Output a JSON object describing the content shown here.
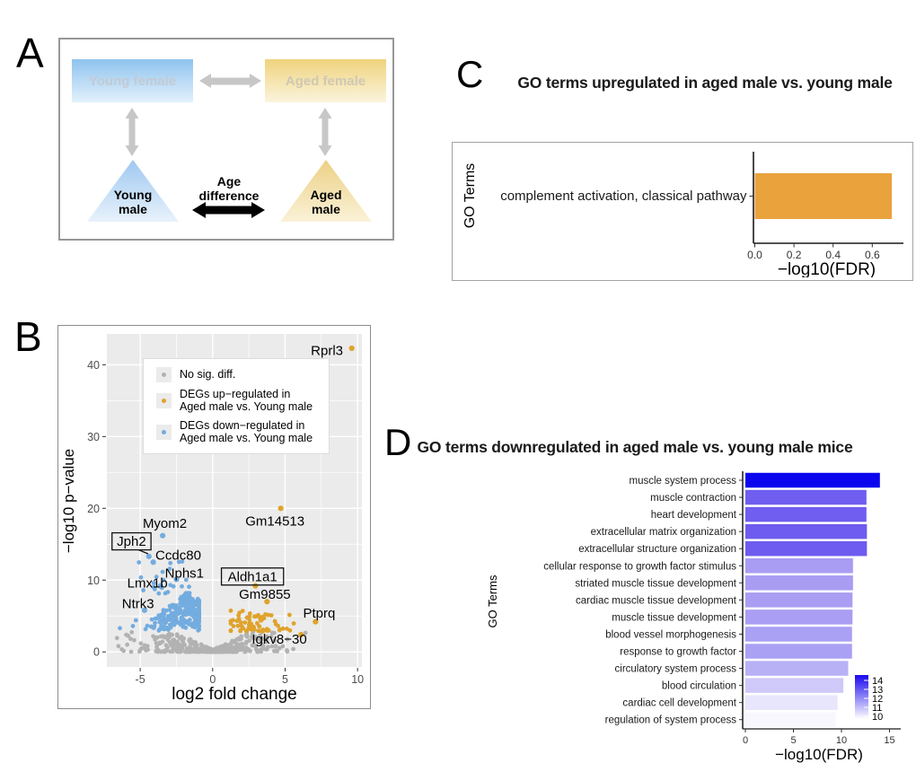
{
  "panel_a": {
    "letter": "A",
    "young_female": "Young female",
    "aged_female": "Aged female",
    "young_male": "Young male",
    "aged_male": "Aged male",
    "age_difference": "Age difference",
    "colors": {
      "blue_top": "#8FC3EE",
      "blue_bottom": "#E3F1FC",
      "yellow_top": "#EFD37E",
      "yellow_bottom": "#FBF4DC",
      "tri_blue_top": "#9FC8F0",
      "tri_blue_bottom": "#E8F2FC",
      "tri_yellow_top": "#ECD084",
      "tri_yellow_bottom": "#FAF2D8",
      "faint_text_on_blue": "#C2CAD3",
      "faint_text_on_yellow": "#CFC8B2",
      "arrow_gray": "#C7C7C7",
      "arrow_black": "#000000"
    }
  },
  "panel_b": {
    "letter": "B"
  },
  "panel_c": {
    "letter": "C",
    "title": "GO terms upregulated in aged male vs. young male"
  },
  "panel_d": {
    "letter": "D",
    "title": "GO terms downregulated in aged male vs. young male mice"
  },
  "chart_data": [
    {
      "type": "scatter",
      "name": "volcano-aged-vs-young-male",
      "xlabel": "log2 fold change",
      "ylabel": "−log10 p−value",
      "xticks": [
        -5,
        0,
        5,
        10
      ],
      "yticks": [
        0,
        10,
        20,
        30,
        40
      ],
      "xlim": [
        -7.3,
        10.3
      ],
      "ylim": [
        -2.1,
        44.3
      ],
      "panel_bg": "#EBEBEB",
      "grid_color": "#FFFFFF",
      "point_colors": {
        "up": "#DFA32C",
        "down": "#73ACDF",
        "ns": "#B2B2B2"
      },
      "legend": [
        {
          "series": "ns",
          "label": "No sig. diff."
        },
        {
          "series": "up",
          "label": "DEGs up−regulated in\n Aged male vs. Young male"
        },
        {
          "series": "down",
          "label": "DEGs down−regulated in\n Aged male vs. Young male"
        }
      ],
      "labeled_genes": [
        {
          "gene": "Rprl3",
          "x": 9.6,
          "y": 42.3,
          "series": "up",
          "label_x": 9.0,
          "label_y": 42.0,
          "anchor": "end"
        },
        {
          "gene": "Gm14513",
          "x": 4.7,
          "y": 20.0,
          "series": "up",
          "label_x": 4.3,
          "label_y": 18.2,
          "anchor": "middle"
        },
        {
          "gene": "Myom2",
          "x": -3.45,
          "y": 16.2,
          "series": "down",
          "label_x": -3.3,
          "label_y": 17.9,
          "anchor": "middle"
        },
        {
          "gene": "Jph2",
          "x": -4.4,
          "y": 13.3,
          "series": "down",
          "label_x": -5.6,
          "label_y": 15.4,
          "anchor": "middle",
          "boxed": true,
          "connector": true
        },
        {
          "gene": "Ccdc80",
          "x": -4.1,
          "y": 12.5,
          "series": "down",
          "label_x": -3.95,
          "label_y": 13.5,
          "anchor": "start"
        },
        {
          "gene": "Nphs1",
          "x": -2.5,
          "y": 10.1,
          "series": "down",
          "label_x": -1.95,
          "label_y": 11.0,
          "anchor": "middle"
        },
        {
          "gene": "Lmx1b",
          "x": -3.6,
          "y": 9.2,
          "series": "down",
          "label_x": -4.5,
          "label_y": 9.6,
          "anchor": "middle"
        },
        {
          "gene": "Ntrk3",
          "x": -4.7,
          "y": 5.8,
          "series": "down",
          "label_x": -5.15,
          "label_y": 6.7,
          "anchor": "middle"
        },
        {
          "gene": "Aldh1a1",
          "x": 2.95,
          "y": 9.2,
          "series": "up",
          "label_x": 2.75,
          "label_y": 10.5,
          "anchor": "middle",
          "boxed": true
        },
        {
          "gene": "Gm9855",
          "x": 3.75,
          "y": 7.0,
          "series": "up",
          "label_x": 3.6,
          "label_y": 8.0,
          "anchor": "middle"
        },
        {
          "gene": "Ptprq",
          "x": 7.1,
          "y": 4.2,
          "series": "up",
          "label_x": 7.35,
          "label_y": 5.4,
          "anchor": "middle"
        },
        {
          "gene": "Igkv8−30",
          "x": 6.1,
          "y": 2.4,
          "series": "up",
          "label_x": 4.6,
          "label_y": 1.8,
          "anchor": "middle"
        }
      ],
      "background_clusters": {
        "seed": 20,
        "down_wedge": {
          "count": 250,
          "x_center": -1.9,
          "x_sd": 1.15,
          "x_min": -5.35,
          "x_max": -0.95,
          "y_base": 2.95,
          "apex_x": -1.7,
          "apex_height": 5.5,
          "half_width": 3.6
        },
        "down_outliers": {
          "count": 24,
          "x_min": -5.1,
          "x_max": -1.5,
          "y_min": 8.1,
          "y_max": 12.8
        },
        "up_cluster": {
          "count": 74,
          "x_center": 2.7,
          "x_sd": 1.15,
          "x_min": 1.25,
          "x_max": 6.3,
          "y_base": 2.85,
          "y_spread": 2.9
        },
        "ns_cloud": {
          "count": 450,
          "x_sd": 2.3,
          "x_min": -6.6,
          "x_max": 6.4,
          "y_cap": 2.85,
          "y_slope": 0.95,
          "y_floor": 0.3
        }
      },
      "extra_points": [
        {
          "x": -6.4,
          "y": 3.3,
          "series": "down"
        },
        {
          "x": -5.5,
          "y": 3.6,
          "series": "down"
        },
        {
          "x": -5.3,
          "y": 4.4,
          "series": "down"
        },
        {
          "x": -5.9,
          "y": 1.0,
          "series": "ns"
        },
        {
          "x": -6.5,
          "y": 0.8,
          "series": "ns"
        },
        {
          "x": -4.9,
          "y": 0.5,
          "series": "ns"
        }
      ]
    },
    {
      "type": "bar",
      "name": "go-upregulated",
      "orientation": "horizontal",
      "title": "GO terms upregulated in aged male vs. young male",
      "categories": [
        "complement activation, classical pathway"
      ],
      "values": [
        0.7
      ],
      "bar_color": "#E9A23C",
      "xlabel": "−log10(FDR)",
      "ylabel": "GO Terms",
      "xticks": [
        0.0,
        0.2,
        0.4,
        0.6
      ],
      "xtick_labels": [
        "0.0",
        "0.2",
        "0.4",
        "0.6"
      ],
      "xlim": [
        0,
        0.72
      ]
    },
    {
      "type": "bar",
      "name": "go-downregulated",
      "orientation": "horizontal",
      "title": "GO terms downregulated in aged male vs. young male mice",
      "categories": [
        "muscle system process",
        "muscle contraction",
        "heart development",
        "extracellular matrix organization",
        "extracellular structure organization",
        "cellular response to growth factor stimulus",
        "striated muscle tissue development",
        "cardiac muscle tissue development",
        "muscle tissue development",
        "blood vessel morphogenesis",
        "response to growth factor",
        "circulatory system process",
        "blood circulation",
        "cardiac cell development",
        "regulation of system process"
      ],
      "values": [
        14.0,
        12.6,
        12.6,
        12.65,
        12.65,
        11.2,
        11.2,
        11.15,
        11.15,
        11.1,
        11.1,
        10.7,
        10.2,
        9.6,
        9.4
      ],
      "bar_colors": [
        "#0B06EE",
        "#6F5EF0",
        "#6F5EF0",
        "#6D5CEF",
        "#6D5CEF",
        "#A89DF3",
        "#A89DF3",
        "#A99EF3",
        "#A99EF3",
        "#AAA0F4",
        "#AAA0F4",
        "#B9B1F6",
        "#CFC9F9",
        "#E8E6FC",
        "#F8F7FE"
      ],
      "xlabel": "−log10(FDR)",
      "ylabel": "GO Terms",
      "xticks": [
        0,
        5,
        10,
        15
      ],
      "xtick_labels": [
        "0",
        "5",
        "10",
        "15"
      ],
      "xlim": [
        0,
        15.3
      ],
      "colorbar": {
        "ticks": [
          14,
          13,
          12,
          11,
          10
        ],
        "high_color": "#1A08EE",
        "low_color": "#FFFFFF"
      }
    }
  ]
}
